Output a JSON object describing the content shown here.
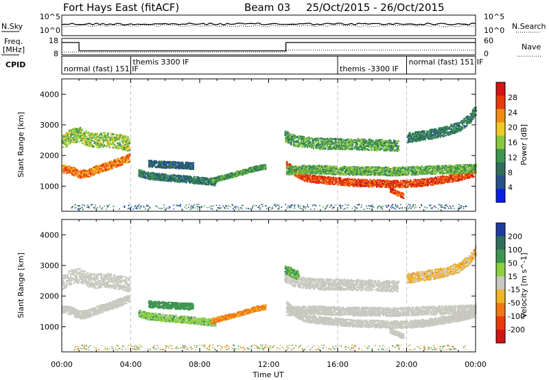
{
  "header": {
    "station": "Fort Hays East (fitACF)",
    "beam": "Beam 03",
    "date_range": "25/Oct/2015 - 26/Oct/2015"
  },
  "left_labels": {
    "nsky": "N.Sky",
    "freq_line1": "Freq.",
    "freq_line2": "[MHz]",
    "cpid": "CPID"
  },
  "right_labels": {
    "nsearch": "N.Search",
    "nave": "Nave"
  },
  "noise_axis": {
    "left_ticks": [
      "10^5",
      "10^0"
    ],
    "right_ticks": [
      "10^5",
      "10^0"
    ]
  },
  "freq_axis": {
    "left_ticks": [
      "18",
      "8"
    ],
    "right_ticks": [
      "60",
      "0"
    ]
  },
  "cpid_segments": [
    {
      "start": 0.0,
      "end": 4.0,
      "label": "normal (fast) 151 IF"
    },
    {
      "start": 4.0,
      "end": 16.0,
      "label": "themis 3300 IF"
    },
    {
      "start": 16.0,
      "end": 20.0,
      "label": "themis -3300 IF"
    },
    {
      "start": 20.0,
      "end": 24.0,
      "label": "normal (fast) 151 IF"
    }
  ],
  "chart_data": [
    {
      "type": "heatmap",
      "name": "power",
      "ylabel": "Slant Range [km]",
      "xlim": [
        0,
        24
      ],
      "ylim": [
        180,
        4500
      ],
      "y_ticks": [
        1000,
        2000,
        3000,
        4000
      ],
      "y_tick_labels": [
        "1000",
        "2000",
        "3000",
        "4000"
      ],
      "colorbar": {
        "label": "Power [dB]",
        "range": [
          0,
          32
        ],
        "ticks": [
          4,
          8,
          12,
          16,
          20,
          24,
          28
        ],
        "tick_labels": [
          "4",
          "8",
          "12",
          "16",
          "20",
          "24",
          "28"
        ],
        "colors": [
          "#0a1ee6",
          "#28508c",
          "#2e6e5a",
          "#3c9650",
          "#8cc83c",
          "#f0c828",
          "#f08c14",
          "#e63c0a",
          "#d21414"
        ]
      },
      "bands": [
        {
          "x": [
            0.0,
            0.5,
            1.0,
            1.5,
            2.0,
            2.5,
            3.0,
            3.5,
            3.9
          ],
          "y": [
            1580,
            1550,
            1400,
            1450,
            1560,
            1650,
            1750,
            1850,
            1950
          ],
          "w": 260,
          "v": 24
        },
        {
          "x": [
            0.0,
            0.5,
            1.0,
            1.5,
            2.0,
            2.5,
            3.0,
            3.5,
            3.9
          ],
          "y": [
            2450,
            2650,
            2700,
            2550,
            2500,
            2550,
            2500,
            2450,
            2400
          ],
          "w": 480,
          "v": 16
        },
        {
          "x": [
            5.0,
            6.0,
            7.0,
            7.6
          ],
          "y": [
            1760,
            1720,
            1700,
            1680
          ],
          "w": 220,
          "v": 7
        },
        {
          "x": [
            4.4,
            5.0,
            6.0,
            7.0,
            8.0,
            8.9
          ],
          "y": [
            1450,
            1360,
            1300,
            1260,
            1200,
            1150
          ],
          "w": 230,
          "v": 9
        },
        {
          "x": [
            8.6,
            9.5,
            10.5,
            11.2,
            11.8
          ],
          "y": [
            1200,
            1330,
            1480,
            1600,
            1660
          ],
          "w": 160,
          "v": 12
        },
        {
          "x": [
            13.0,
            13.5,
            14.0,
            15.0,
            16.0,
            17.0,
            18.0,
            19.0,
            20.0,
            21.0,
            22.0,
            23.0,
            23.9
          ],
          "y": [
            1750,
            1480,
            1300,
            1230,
            1180,
            1130,
            1120,
            1090,
            1100,
            1140,
            1230,
            1320,
            1450
          ],
          "w": 240,
          "v": 27
        },
        {
          "x": [
            13.0,
            14.0,
            15.0,
            16.0,
            17.0,
            18.0,
            19.0,
            20.0,
            21.0,
            22.0,
            23.0,
            24.0
          ],
          "y": [
            1520,
            1560,
            1560,
            1530,
            1520,
            1520,
            1500,
            1520,
            1540,
            1560,
            1580,
            1600
          ],
          "w": 280,
          "v": 14
        },
        {
          "x": [
            12.9,
            13.5,
            14.5,
            15.5,
            16.5,
            17.5,
            18.5,
            19.5
          ],
          "y": [
            2650,
            2500,
            2420,
            2400,
            2400,
            2380,
            2360,
            2340
          ],
          "w": 360,
          "v": 13
        },
        {
          "x": [
            20.0,
            21.0,
            22.0,
            23.0,
            23.6,
            24.0
          ],
          "y": [
            2600,
            2680,
            2780,
            2950,
            3200,
            3500
          ],
          "w": 320,
          "v": 10
        },
        {
          "x": [
            19.0,
            19.4,
            19.8
          ],
          "y": [
            900,
            800,
            700
          ],
          "w": 160,
          "v": 26
        }
      ],
      "floor": {
        "x_start": 0.5,
        "x_end": 23.5,
        "y_range": [
          260,
          420
        ],
        "v_range": [
          2,
          14
        ]
      }
    },
    {
      "type": "heatmap",
      "name": "velocity",
      "ylabel": "Slant Range [km]",
      "xlabel": "Time UT",
      "xlim": [
        0,
        24
      ],
      "ylim": [
        180,
        4500
      ],
      "x_ticks": [
        0,
        4,
        8,
        12,
        16,
        20,
        24
      ],
      "x_tick_labels": [
        "00:00",
        "04:00",
        "08:00",
        "12:00",
        "16:00",
        "20:00",
        "00:00"
      ],
      "y_ticks": [
        1000,
        2000,
        3000,
        4000
      ],
      "y_tick_labels": [
        "1000",
        "2000",
        "3000",
        "4000"
      ],
      "colorbar": {
        "label": "Velocity [m s^-1]",
        "ticks": [
          200,
          100,
          50,
          15,
          -15,
          -50,
          -100,
          -200
        ],
        "tick_labels": [
          "200",
          "100",
          "50",
          "15",
          "-15",
          "-50",
          "-100",
          "-200"
        ],
        "colors": [
          "#1e3ca0",
          "#2e6e5a",
          "#3c9650",
          "#8cd23c",
          "#c8c8c0",
          "#f0b428",
          "#f07814",
          "#e63c0a",
          "#d21414"
        ]
      },
      "bands": [
        {
          "x": [
            0.0,
            0.5,
            1.0,
            1.5,
            2.0,
            2.5,
            3.0,
            3.5,
            3.9
          ],
          "y": [
            1580,
            1550,
            1400,
            1450,
            1560,
            1650,
            1750,
            1850,
            1950
          ],
          "w": 260,
          "v": 0
        },
        {
          "x": [
            0.0,
            0.5,
            1.0,
            1.5,
            2.0,
            2.5,
            3.0,
            3.5,
            3.9
          ],
          "y": [
            2450,
            2650,
            2700,
            2550,
            2500,
            2550,
            2500,
            2450,
            2400
          ],
          "w": 480,
          "v": 0
        },
        {
          "x": [
            5.0,
            6.0,
            7.0,
            7.6
          ],
          "y": [
            1760,
            1720,
            1700,
            1680
          ],
          "w": 220,
          "v": 50
        },
        {
          "x": [
            4.4,
            5.0,
            6.0,
            7.0,
            8.0,
            8.9
          ],
          "y": [
            1450,
            1360,
            1300,
            1260,
            1200,
            1150
          ],
          "w": 230,
          "v": 25
        },
        {
          "x": [
            8.6,
            9.5,
            10.5,
            11.2,
            11.8
          ],
          "y": [
            1200,
            1330,
            1480,
            1600,
            1660
          ],
          "w": 160,
          "v": -40
        },
        {
          "x": [
            13.0,
            13.5,
            14.0,
            15.0,
            16.0,
            17.0,
            18.0,
            19.0,
            20.0,
            21.0,
            22.0,
            23.0,
            23.9
          ],
          "y": [
            1750,
            1480,
            1300,
            1230,
            1180,
            1130,
            1120,
            1090,
            1100,
            1140,
            1230,
            1320,
            1450
          ],
          "w": 240,
          "v": 0
        },
        {
          "x": [
            13.0,
            14.0,
            15.0,
            16.0,
            17.0,
            18.0,
            19.0,
            20.0,
            21.0,
            22.0,
            23.0,
            24.0
          ],
          "y": [
            1520,
            1560,
            1560,
            1530,
            1520,
            1520,
            1500,
            1520,
            1540,
            1560,
            1580,
            1600
          ],
          "w": 280,
          "v": 0
        },
        {
          "x": [
            12.9,
            13.5,
            14.5,
            15.5,
            16.5,
            17.5,
            18.5,
            19.5
          ],
          "y": [
            2650,
            2500,
            2420,
            2400,
            2400,
            2380,
            2360,
            2340
          ],
          "w": 360,
          "v": 0
        },
        {
          "x": [
            20.0,
            21.0,
            22.0,
            23.0,
            23.6,
            24.0
          ],
          "y": [
            2600,
            2680,
            2780,
            2950,
            3200,
            3500
          ],
          "w": 320,
          "v": -20
        },
        {
          "x": [
            12.9,
            13.3,
            13.7
          ],
          "y": [
            2900,
            2800,
            2700
          ],
          "w": 300,
          "v": 40
        },
        {
          "x": [
            19.0,
            19.4,
            19.8
          ],
          "y": [
            900,
            800,
            700
          ],
          "w": 160,
          "v": 0
        }
      ],
      "floor": {
        "x_start": 0.5,
        "x_end": 23.5,
        "y_range": [
          260,
          420
        ],
        "v_range": [
          -60,
          60
        ]
      }
    }
  ]
}
